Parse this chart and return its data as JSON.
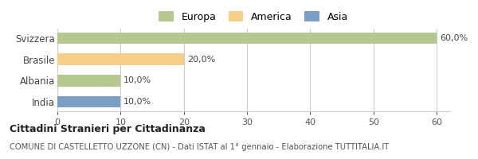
{
  "categories": [
    "India",
    "Albania",
    "Brasile",
    "Svizzera"
  ],
  "values": [
    10.0,
    10.0,
    20.0,
    60.0
  ],
  "bar_colors": [
    "#7a9ec4",
    "#b5c98e",
    "#f5cf87",
    "#b5c98e"
  ],
  "continent_colors": {
    "Europa": "#b5c98e",
    "America": "#f5cf87",
    "Asia": "#7a9ec4"
  },
  "legend_labels": [
    "Europa",
    "America",
    "Asia"
  ],
  "title_bold": "Cittadini Stranieri per Cittadinanza",
  "subtitle": "COMUNE DI CASTELLETTO UZZONE (CN) - Dati ISTAT al 1° gennaio - Elaborazione TUTTITALIA.IT",
  "xlim": [
    0,
    62
  ],
  "xticks": [
    0,
    10,
    20,
    30,
    40,
    50,
    60
  ],
  "bar_labels": [
    "10,0%",
    "10,0%",
    "20,0%",
    "60,0%"
  ],
  "background_color": "#ffffff",
  "grid_color": "#cccccc",
  "bar_height": 0.55
}
